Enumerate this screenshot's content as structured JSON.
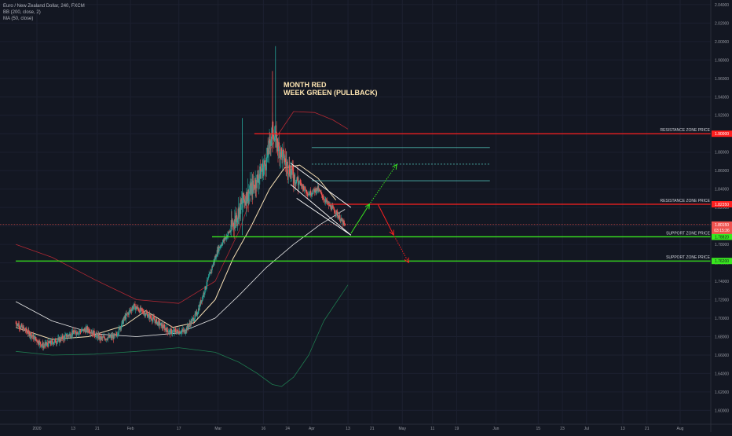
{
  "legend": {
    "symbol": "Euro / New Zealand Dollar, 240, FXCM",
    "bb": "BB (200, close, 2)",
    "ma": "MA (50, close)"
  },
  "colors": {
    "background": "#131722",
    "grid": "#1c2030",
    "axis_text": "#9598a1",
    "candle_up": "#26a69a",
    "candle_down": "#ef5350",
    "bb_upper": "#b22833",
    "bb_lower": "#1e7a4f",
    "ma": "#f5deb3",
    "bb_basis": "#e8e8e8",
    "resistance": "#ff1f1f",
    "support": "#39e81f",
    "channel": "#4db6ac",
    "annotation_text": "#ffe6b3"
  },
  "annotation": {
    "line1": "MONTH RED",
    "line2": "WEEK GREEN (PULLBACK)"
  },
  "chart_data": {
    "type": "candlestick",
    "title": "",
    "xlabel": "",
    "ylabel": "",
    "ylim": [
      1.585,
      2.045
    ],
    "y_ticks": [
      "2.04000",
      "2.02000",
      "2.00000",
      "1.98000",
      "1.96000",
      "1.94000",
      "1.92000",
      "1.90000",
      "1.88000",
      "1.86000",
      "1.84000",
      "1.82000",
      "1.80000",
      "1.78000",
      "1.76000",
      "1.74000",
      "1.72000",
      "1.70000",
      "1.68000",
      "1.66000",
      "1.64000",
      "1.62000",
      "1.60000"
    ],
    "x_ticks": [
      {
        "label": "2020",
        "date": "2020-01-01"
      },
      {
        "label": "13",
        "date": "2020-01-13"
      },
      {
        "label": "21",
        "date": "2020-01-21"
      },
      {
        "label": "Feb",
        "date": "2020-02-01"
      },
      {
        "label": "17",
        "date": "2020-02-17"
      },
      {
        "label": "Mar",
        "date": "2020-03-01"
      },
      {
        "label": "16",
        "date": "2020-03-16"
      },
      {
        "label": "24",
        "date": "2020-03-24"
      },
      {
        "label": "Apr",
        "date": "2020-04-01"
      },
      {
        "label": "13",
        "date": "2020-04-13"
      },
      {
        "label": "21",
        "date": "2020-04-21"
      },
      {
        "label": "May",
        "date": "2020-05-01"
      },
      {
        "label": "11",
        "date": "2020-05-11"
      },
      {
        "label": "19",
        "date": "2020-05-19"
      },
      {
        "label": "Jun",
        "date": "2020-06-01"
      },
      {
        "label": "15",
        "date": "2020-06-15"
      },
      {
        "label": "23",
        "date": "2020-06-23"
      },
      {
        "label": "Jul",
        "date": "2020-07-01"
      },
      {
        "label": "13",
        "date": "2020-07-13"
      },
      {
        "label": "21",
        "date": "2020-07-21"
      },
      {
        "label": "Aug",
        "date": "2020-08-01"
      }
    ],
    "price_path": [
      {
        "date": "2019-12-25",
        "close": 1.695
      },
      {
        "date": "2019-12-30",
        "close": 1.682
      },
      {
        "date": "2020-01-03",
        "close": 1.67
      },
      {
        "date": "2020-01-08",
        "close": 1.676
      },
      {
        "date": "2020-01-13",
        "close": 1.684
      },
      {
        "date": "2020-01-18",
        "close": 1.688
      },
      {
        "date": "2020-01-22",
        "close": 1.678
      },
      {
        "date": "2020-01-27",
        "close": 1.68
      },
      {
        "date": "2020-01-30",
        "close": 1.7
      },
      {
        "date": "2020-02-02",
        "close": 1.713
      },
      {
        "date": "2020-02-06",
        "close": 1.705
      },
      {
        "date": "2020-02-10",
        "close": 1.695
      },
      {
        "date": "2020-02-14",
        "close": 1.685
      },
      {
        "date": "2020-02-19",
        "close": 1.686
      },
      {
        "date": "2020-02-23",
        "close": 1.705
      },
      {
        "date": "2020-02-27",
        "close": 1.745
      },
      {
        "date": "2020-03-01",
        "close": 1.775
      },
      {
        "date": "2020-03-05",
        "close": 1.795
      },
      {
        "date": "2020-03-09",
        "close": 1.825
      },
      {
        "date": "2020-03-13",
        "close": 1.845
      },
      {
        "date": "2020-03-17",
        "close": 1.87
      },
      {
        "date": "2020-03-19",
        "close": 1.905
      },
      {
        "date": "2020-03-21",
        "close": 1.885
      },
      {
        "date": "2020-03-24",
        "close": 1.865
      },
      {
        "date": "2020-03-27",
        "close": 1.85
      },
      {
        "date": "2020-03-31",
        "close": 1.835
      },
      {
        "date": "2020-04-03",
        "close": 1.84
      },
      {
        "date": "2020-04-06",
        "close": 1.825
      },
      {
        "date": "2020-04-09",
        "close": 1.815
      },
      {
        "date": "2020-04-12",
        "close": 1.8
      }
    ],
    "series": [
      {
        "name": "MA (50, close)",
        "points": [
          {
            "date": "2019-12-25",
            "value": 1.69
          },
          {
            "date": "2020-01-06",
            "value": 1.677
          },
          {
            "date": "2020-01-18",
            "value": 1.68
          },
          {
            "date": "2020-01-30",
            "value": 1.692
          },
          {
            "date": "2020-02-06",
            "value": 1.708
          },
          {
            "date": "2020-02-15",
            "value": 1.69
          },
          {
            "date": "2020-02-22",
            "value": 1.695
          },
          {
            "date": "2020-02-29",
            "value": 1.72
          },
          {
            "date": "2020-03-06",
            "value": 1.765
          },
          {
            "date": "2020-03-12",
            "value": 1.8
          },
          {
            "date": "2020-03-18",
            "value": 1.84
          },
          {
            "date": "2020-03-23",
            "value": 1.863
          },
          {
            "date": "2020-03-28",
            "value": 1.866
          },
          {
            "date": "2020-04-03",
            "value": 1.852
          },
          {
            "date": "2020-04-09",
            "value": 1.828
          }
        ]
      },
      {
        "name": "BB basis (200)",
        "points": [
          {
            "date": "2019-12-25",
            "value": 1.718
          },
          {
            "date": "2020-01-06",
            "value": 1.697
          },
          {
            "date": "2020-01-20",
            "value": 1.683
          },
          {
            "date": "2020-02-03",
            "value": 1.68
          },
          {
            "date": "2020-02-17",
            "value": 1.684
          },
          {
            "date": "2020-02-29",
            "value": 1.7
          },
          {
            "date": "2020-03-08",
            "value": 1.725
          },
          {
            "date": "2020-03-17",
            "value": 1.755
          },
          {
            "date": "2020-03-26",
            "value": 1.78
          },
          {
            "date": "2020-04-04",
            "value": 1.802
          },
          {
            "date": "2020-04-12",
            "value": 1.818
          }
        ]
      },
      {
        "name": "BB upper (200)",
        "points": [
          {
            "date": "2019-12-25",
            "value": 1.78
          },
          {
            "date": "2020-01-06",
            "value": 1.766
          },
          {
            "date": "2020-01-20",
            "value": 1.742
          },
          {
            "date": "2020-02-03",
            "value": 1.72
          },
          {
            "date": "2020-02-17",
            "value": 1.716
          },
          {
            "date": "2020-02-29",
            "value": 1.74
          },
          {
            "date": "2020-03-08",
            "value": 1.795
          },
          {
            "date": "2020-03-14",
            "value": 1.85
          },
          {
            "date": "2020-03-20",
            "value": 1.895
          },
          {
            "date": "2020-03-26",
            "value": 1.924
          },
          {
            "date": "2020-04-02",
            "value": 1.923
          },
          {
            "date": "2020-04-08",
            "value": 1.915
          },
          {
            "date": "2020-04-13",
            "value": 1.905
          }
        ]
      },
      {
        "name": "BB lower (200)",
        "points": [
          {
            "date": "2019-12-25",
            "value": 1.664
          },
          {
            "date": "2020-01-06",
            "value": 1.66
          },
          {
            "date": "2020-01-20",
            "value": 1.661
          },
          {
            "date": "2020-02-03",
            "value": 1.664
          },
          {
            "date": "2020-02-17",
            "value": 1.668
          },
          {
            "date": "2020-02-29",
            "value": 1.663
          },
          {
            "date": "2020-03-08",
            "value": 1.652
          },
          {
            "date": "2020-03-14",
            "value": 1.64
          },
          {
            "date": "2020-03-19",
            "value": 1.628
          },
          {
            "date": "2020-03-22",
            "value": 1.626
          },
          {
            "date": "2020-03-26",
            "value": 1.636
          },
          {
            "date": "2020-03-31",
            "value": 1.66
          },
          {
            "date": "2020-04-05",
            "value": 1.697
          },
          {
            "date": "2020-04-13",
            "value": 1.736
          }
        ]
      }
    ],
    "horizontal_levels": [
      {
        "label": "RESISTANCE ZONE PRICE",
        "price": 1.9,
        "tag": "1.90000",
        "kind": "resistance",
        "start": "2020-03-13"
      },
      {
        "label": "RESISTANCE ZONE PRICE",
        "price": 1.8235,
        "tag": "1.82350",
        "kind": "resistance",
        "start": "2020-04-06"
      },
      {
        "label": "SUPPORT ZONE PRICE",
        "price": 1.7882,
        "tag": "1.78820",
        "kind": "support",
        "start": "2020-02-28"
      },
      {
        "label": "SUPPORT ZONE PRICE",
        "price": 1.762,
        "tag": "1.76200",
        "kind": "support",
        "start": "2019-12-25"
      }
    ],
    "current_price": {
      "price": 1.8015,
      "tag": "1.80150",
      "countdown": "03:15:36"
    },
    "channel_lines": [
      {
        "price": 1.885,
        "start": "2020-04-01",
        "end": "2020-05-30",
        "dashed": false
      },
      {
        "price": 1.867,
        "start": "2020-04-01",
        "end": "2020-05-30",
        "dashed": true
      },
      {
        "price": 1.849,
        "start": "2020-04-01",
        "end": "2020-05-30",
        "dashed": false
      }
    ],
    "wedge": [
      {
        "from": {
          "date": "2020-03-25",
          "price": 1.868
        },
        "to": {
          "date": "2020-04-14",
          "price": 1.82
        }
      },
      {
        "from": {
          "date": "2020-03-25",
          "price": 1.845
        },
        "to": {
          "date": "2020-04-14",
          "price": 1.79
        }
      },
      {
        "from": {
          "date": "2020-03-27",
          "price": 1.83
        },
        "to": {
          "date": "2020-04-14",
          "price": 1.79
        }
      }
    ],
    "arrows": [
      {
        "name": "green-up",
        "from": {
          "date": "2020-04-14",
          "price": 1.792
        },
        "to": {
          "date": "2020-04-20",
          "price": 1.823
        },
        "color": "support",
        "dashed": false
      },
      {
        "name": "green-dotted",
        "from": {
          "date": "2020-04-20",
          "price": 1.823
        },
        "to": {
          "date": "2020-04-29",
          "price": 1.866
        },
        "color": "support",
        "dashed": true
      },
      {
        "name": "red-down",
        "from": {
          "date": "2020-04-23",
          "price": 1.823
        },
        "to": {
          "date": "2020-04-28",
          "price": 1.791
        },
        "color": "resistance",
        "dashed": false
      },
      {
        "name": "red-dotted",
        "from": {
          "date": "2020-04-28",
          "price": 1.791
        },
        "to": {
          "date": "2020-05-03",
          "price": 1.761
        },
        "color": "resistance",
        "dashed": true
      }
    ]
  }
}
